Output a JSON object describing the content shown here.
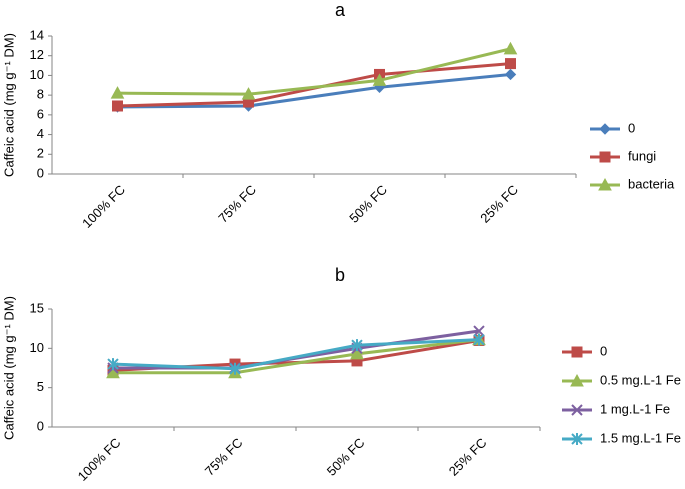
{
  "chart_data": [
    {
      "type": "line",
      "title": "a",
      "y_label": "Caffeic acid (mg g⁻¹ DM)",
      "categories": [
        "100% FC",
        "75% FC",
        "50% FC",
        "25% FC"
      ],
      "series": [
        {
          "name": "0",
          "color": "#4a7ebb",
          "marker": "diamond",
          "values": [
            6.8,
            6.9,
            8.8,
            10.1
          ]
        },
        {
          "name": "fungi",
          "color": "#be4b48",
          "marker": "square",
          "values": [
            6.9,
            7.3,
            10.1,
            11.2
          ]
        },
        {
          "name": "bacteria",
          "color": "#98b954",
          "marker": "triangle",
          "values": [
            8.2,
            8.1,
            9.5,
            12.7
          ]
        }
      ],
      "ylim": [
        0,
        14
      ],
      "yticks": [
        0,
        2,
        4,
        6,
        8,
        10,
        12,
        14
      ],
      "grid": false,
      "legend": "right"
    },
    {
      "type": "line",
      "title": "b",
      "y_label": "Caffeic acid (mg g⁻¹ DM)",
      "categories": [
        "100% FC",
        "75% FC",
        "50% FC",
        "25% FC"
      ],
      "series": [
        {
          "name": "0",
          "color": "#be4b48",
          "marker": "square",
          "values": [
            7.2,
            8.0,
            8.4,
            11.0
          ]
        },
        {
          "name": "0.5 mg.L-1 Fe",
          "color": "#98b954",
          "marker": "triangle",
          "values": [
            6.9,
            6.9,
            9.3,
            11.1
          ]
        },
        {
          "name": "1 mg.L-1 Fe",
          "color": "#7d60a0",
          "marker": "x",
          "values": [
            7.5,
            7.5,
            10.0,
            12.2
          ]
        },
        {
          "name": "1.5 mg.L-1 Fe",
          "color": "#46aac5",
          "marker": "star",
          "values": [
            8.0,
            7.4,
            10.4,
            11.1
          ]
        }
      ],
      "ylim": [
        0,
        15
      ],
      "yticks": [
        0,
        5,
        10,
        15
      ],
      "grid": false,
      "legend": "right"
    }
  ]
}
